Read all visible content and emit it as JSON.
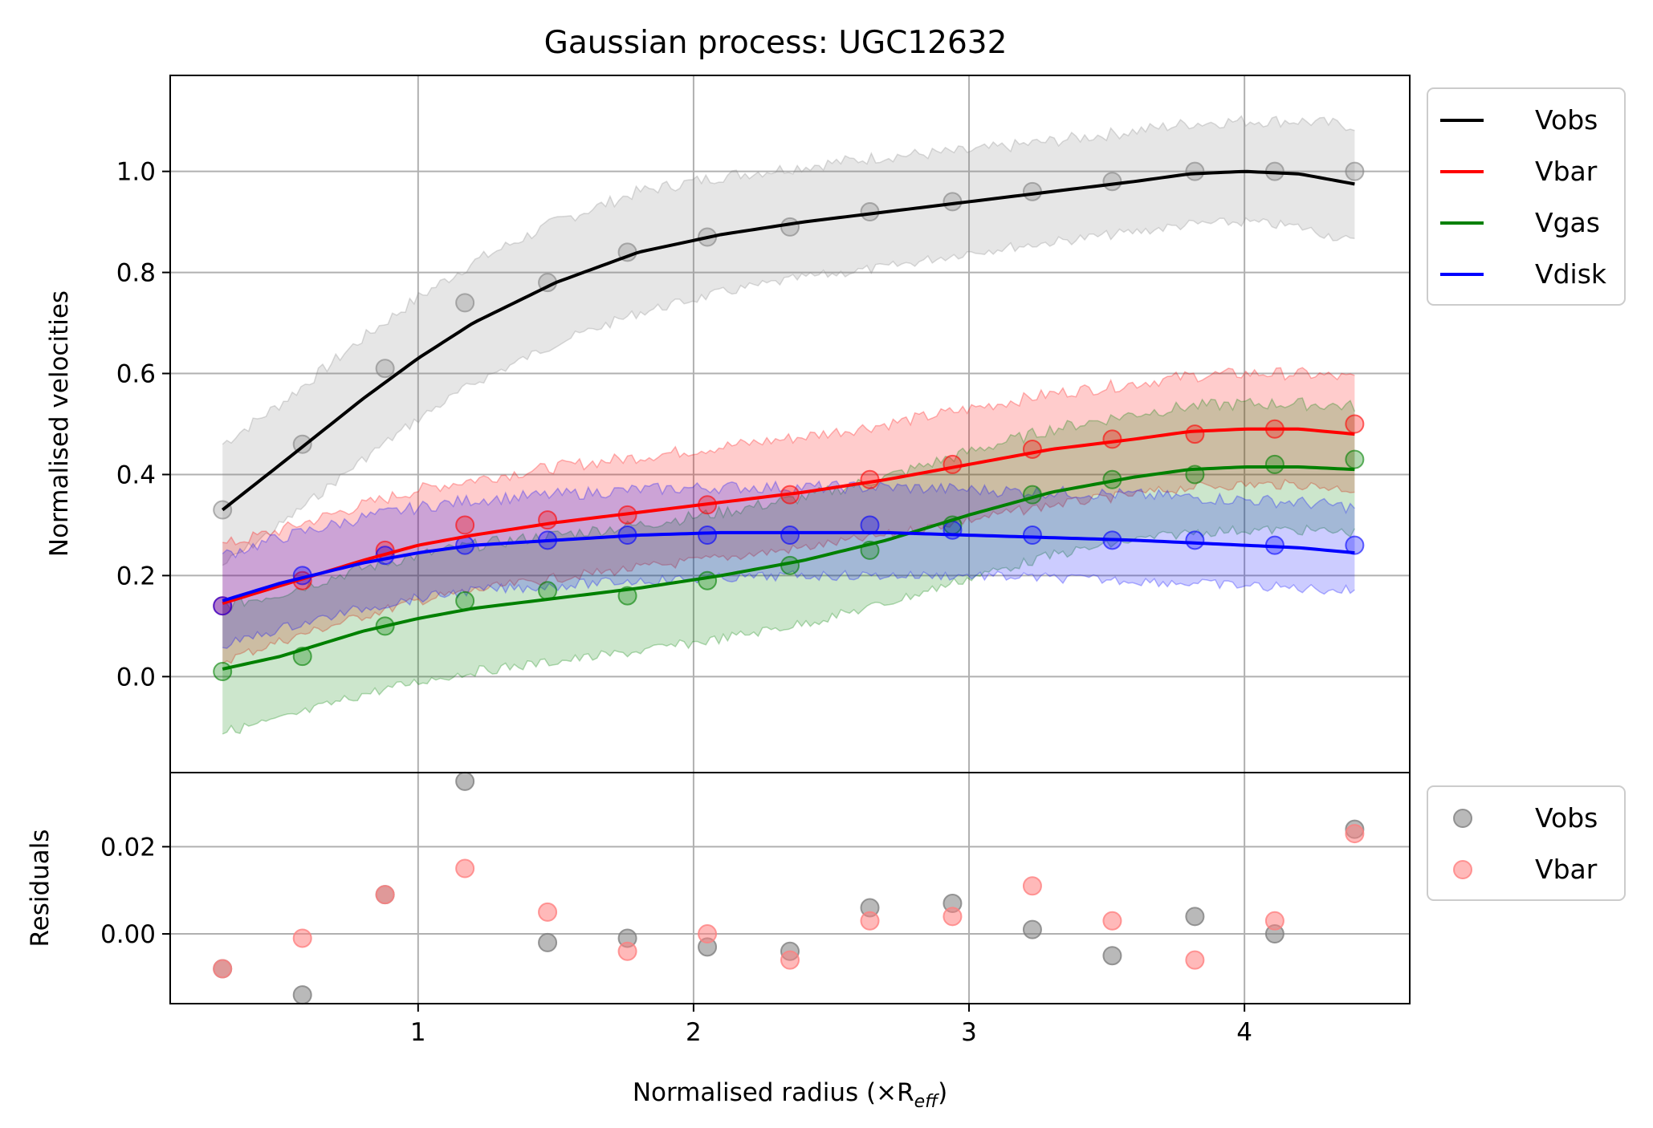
{
  "chart_data": {
    "type": "line",
    "title": "Gaussian process: UGC12632",
    "x": [
      0.29,
      0.58,
      0.88,
      1.17,
      1.47,
      1.76,
      2.05,
      2.35,
      2.64,
      2.94,
      3.23,
      3.52,
      3.82,
      4.11,
      4.4
    ],
    "main_panel": {
      "ylabel": "Normalised velocities",
      "xlim": [
        0.1,
        4.6
      ],
      "ylim": [
        -0.19,
        1.19
      ],
      "yticks": [
        0.0,
        0.2,
        0.4,
        0.6,
        0.8,
        1.0
      ],
      "ytick_labels": [
        "0.0",
        "0.2",
        "0.4",
        "0.6",
        "0.8",
        "1.0"
      ],
      "grid": true,
      "legend": {
        "placement": "outside-top-right",
        "entries": [
          "Vobs",
          "Vbar",
          "Vgas",
          "Vdisk"
        ]
      },
      "series": [
        {
          "name": "Vobs",
          "color": "#000000",
          "fill": "#808080",
          "points": [
            0.33,
            0.46,
            0.61,
            0.74,
            0.78,
            0.84,
            0.87,
            0.89,
            0.92,
            0.94,
            0.96,
            0.98,
            1.0,
            1.0,
            1.0
          ],
          "curve_x": [
            0.29,
            0.5,
            0.8,
            1.0,
            1.2,
            1.5,
            1.8,
            2.1,
            2.4,
            2.7,
            3.0,
            3.3,
            3.6,
            3.8,
            4.0,
            4.2,
            4.4
          ],
          "curve_y": [
            0.33,
            0.42,
            0.55,
            0.63,
            0.7,
            0.78,
            0.84,
            0.875,
            0.9,
            0.92,
            0.94,
            0.96,
            0.98,
            0.995,
            1.0,
            0.995,
            0.975
          ],
          "band_lower": [
            0.22,
            0.3,
            0.43,
            0.51,
            0.58,
            0.66,
            0.72,
            0.76,
            0.79,
            0.81,
            0.84,
            0.86,
            0.88,
            0.895,
            0.9,
            0.89,
            0.86
          ],
          "band_upper": [
            0.46,
            0.54,
            0.67,
            0.75,
            0.82,
            0.9,
            0.96,
            0.99,
            1.01,
            1.03,
            1.04,
            1.06,
            1.08,
            1.095,
            1.1,
            1.1,
            1.09
          ]
        },
        {
          "name": "Vbar",
          "color": "#ff0000",
          "fill": "#ff0000",
          "points": [
            0.14,
            0.19,
            0.25,
            0.3,
            0.31,
            0.32,
            0.34,
            0.36,
            0.39,
            0.42,
            0.45,
            0.47,
            0.48,
            0.49,
            0.5
          ],
          "curve_x": [
            0.29,
            0.5,
            0.8,
            1.0,
            1.2,
            1.5,
            1.8,
            2.1,
            2.4,
            2.7,
            3.0,
            3.3,
            3.6,
            3.8,
            4.0,
            4.2,
            4.4
          ],
          "curve_y": [
            0.145,
            0.18,
            0.23,
            0.26,
            0.28,
            0.305,
            0.325,
            0.345,
            0.365,
            0.39,
            0.42,
            0.45,
            0.47,
            0.485,
            0.49,
            0.49,
            0.48
          ],
          "band_lower": [
            0.03,
            0.07,
            0.12,
            0.15,
            0.17,
            0.195,
            0.215,
            0.235,
            0.255,
            0.28,
            0.31,
            0.34,
            0.36,
            0.375,
            0.38,
            0.38,
            0.37
          ],
          "band_upper": [
            0.26,
            0.29,
            0.34,
            0.37,
            0.39,
            0.415,
            0.435,
            0.455,
            0.475,
            0.5,
            0.53,
            0.56,
            0.58,
            0.595,
            0.6,
            0.6,
            0.59
          ]
        },
        {
          "name": "Vgas",
          "color": "#008000",
          "fill": "#008000",
          "points": [
            0.01,
            0.04,
            0.1,
            0.15,
            0.17,
            0.16,
            0.19,
            0.22,
            0.25,
            0.3,
            0.36,
            0.39,
            0.4,
            0.42,
            0.43
          ],
          "curve_x": [
            0.29,
            0.5,
            0.8,
            1.0,
            1.2,
            1.5,
            1.8,
            2.1,
            2.4,
            2.7,
            3.0,
            3.3,
            3.6,
            3.8,
            4.0,
            4.2,
            4.4
          ],
          "curve_y": [
            0.015,
            0.04,
            0.09,
            0.115,
            0.135,
            0.155,
            0.175,
            0.2,
            0.23,
            0.27,
            0.32,
            0.365,
            0.395,
            0.41,
            0.415,
            0.415,
            0.41
          ],
          "band_lower": [
            -0.11,
            -0.085,
            -0.035,
            -0.01,
            0.01,
            0.03,
            0.05,
            0.075,
            0.105,
            0.145,
            0.195,
            0.24,
            0.27,
            0.285,
            0.29,
            0.29,
            0.285
          ],
          "band_upper": [
            0.14,
            0.165,
            0.215,
            0.24,
            0.26,
            0.28,
            0.3,
            0.325,
            0.355,
            0.395,
            0.445,
            0.49,
            0.52,
            0.535,
            0.54,
            0.54,
            0.535
          ]
        },
        {
          "name": "Vdisk",
          "color": "#0000ff",
          "fill": "#0000ff",
          "points": [
            0.14,
            0.2,
            0.24,
            0.26,
            0.27,
            0.28,
            0.28,
            0.28,
            0.3,
            0.29,
            0.28,
            0.27,
            0.27,
            0.26,
            0.26
          ],
          "curve_x": [
            0.29,
            0.5,
            0.8,
            1.0,
            1.2,
            1.5,
            1.8,
            2.1,
            2.4,
            2.7,
            3.0,
            3.3,
            3.6,
            3.8,
            4.0,
            4.2,
            4.4
          ],
          "curve_y": [
            0.15,
            0.185,
            0.225,
            0.245,
            0.26,
            0.27,
            0.28,
            0.285,
            0.285,
            0.285,
            0.28,
            0.275,
            0.27,
            0.265,
            0.26,
            0.255,
            0.245
          ],
          "band_lower": [
            0.06,
            0.095,
            0.135,
            0.155,
            0.17,
            0.18,
            0.19,
            0.195,
            0.2,
            0.2,
            0.2,
            0.195,
            0.19,
            0.185,
            0.18,
            0.175,
            0.17
          ],
          "band_upper": [
            0.24,
            0.275,
            0.315,
            0.335,
            0.35,
            0.36,
            0.37,
            0.375,
            0.375,
            0.375,
            0.37,
            0.365,
            0.36,
            0.355,
            0.35,
            0.345,
            0.335
          ]
        }
      ]
    },
    "residual_panel": {
      "ylabel": "Residuals",
      "xlabel": "Normalised radius (×R",
      "xlabel_sub": "eff",
      "xlabel_close": ")",
      "xticks": [
        1,
        2,
        3,
        4
      ],
      "xtick_labels": [
        "1",
        "2",
        "3",
        "4"
      ],
      "ylim": [
        -0.016,
        0.037
      ],
      "yticks": [
        0.0,
        0.02
      ],
      "ytick_labels": [
        "0.00",
        "0.02"
      ],
      "grid": true,
      "legend": {
        "placement": "outside-right",
        "entries": [
          "Vobs",
          "Vbar"
        ]
      },
      "series": [
        {
          "name": "Vobs",
          "color": "#808080",
          "values": [
            -0.008,
            -0.014,
            0.009,
            0.035,
            -0.002,
            -0.001,
            -0.003,
            -0.004,
            0.006,
            0.007,
            0.001,
            -0.005,
            0.004,
            0.0,
            0.024
          ]
        },
        {
          "name": "Vbar",
          "color": "#ff7f7f",
          "values": [
            -0.008,
            -0.001,
            0.009,
            0.015,
            0.005,
            -0.004,
            0.0,
            -0.006,
            0.003,
            0.004,
            0.011,
            0.003,
            -0.006,
            0.003,
            0.023
          ]
        }
      ]
    }
  }
}
